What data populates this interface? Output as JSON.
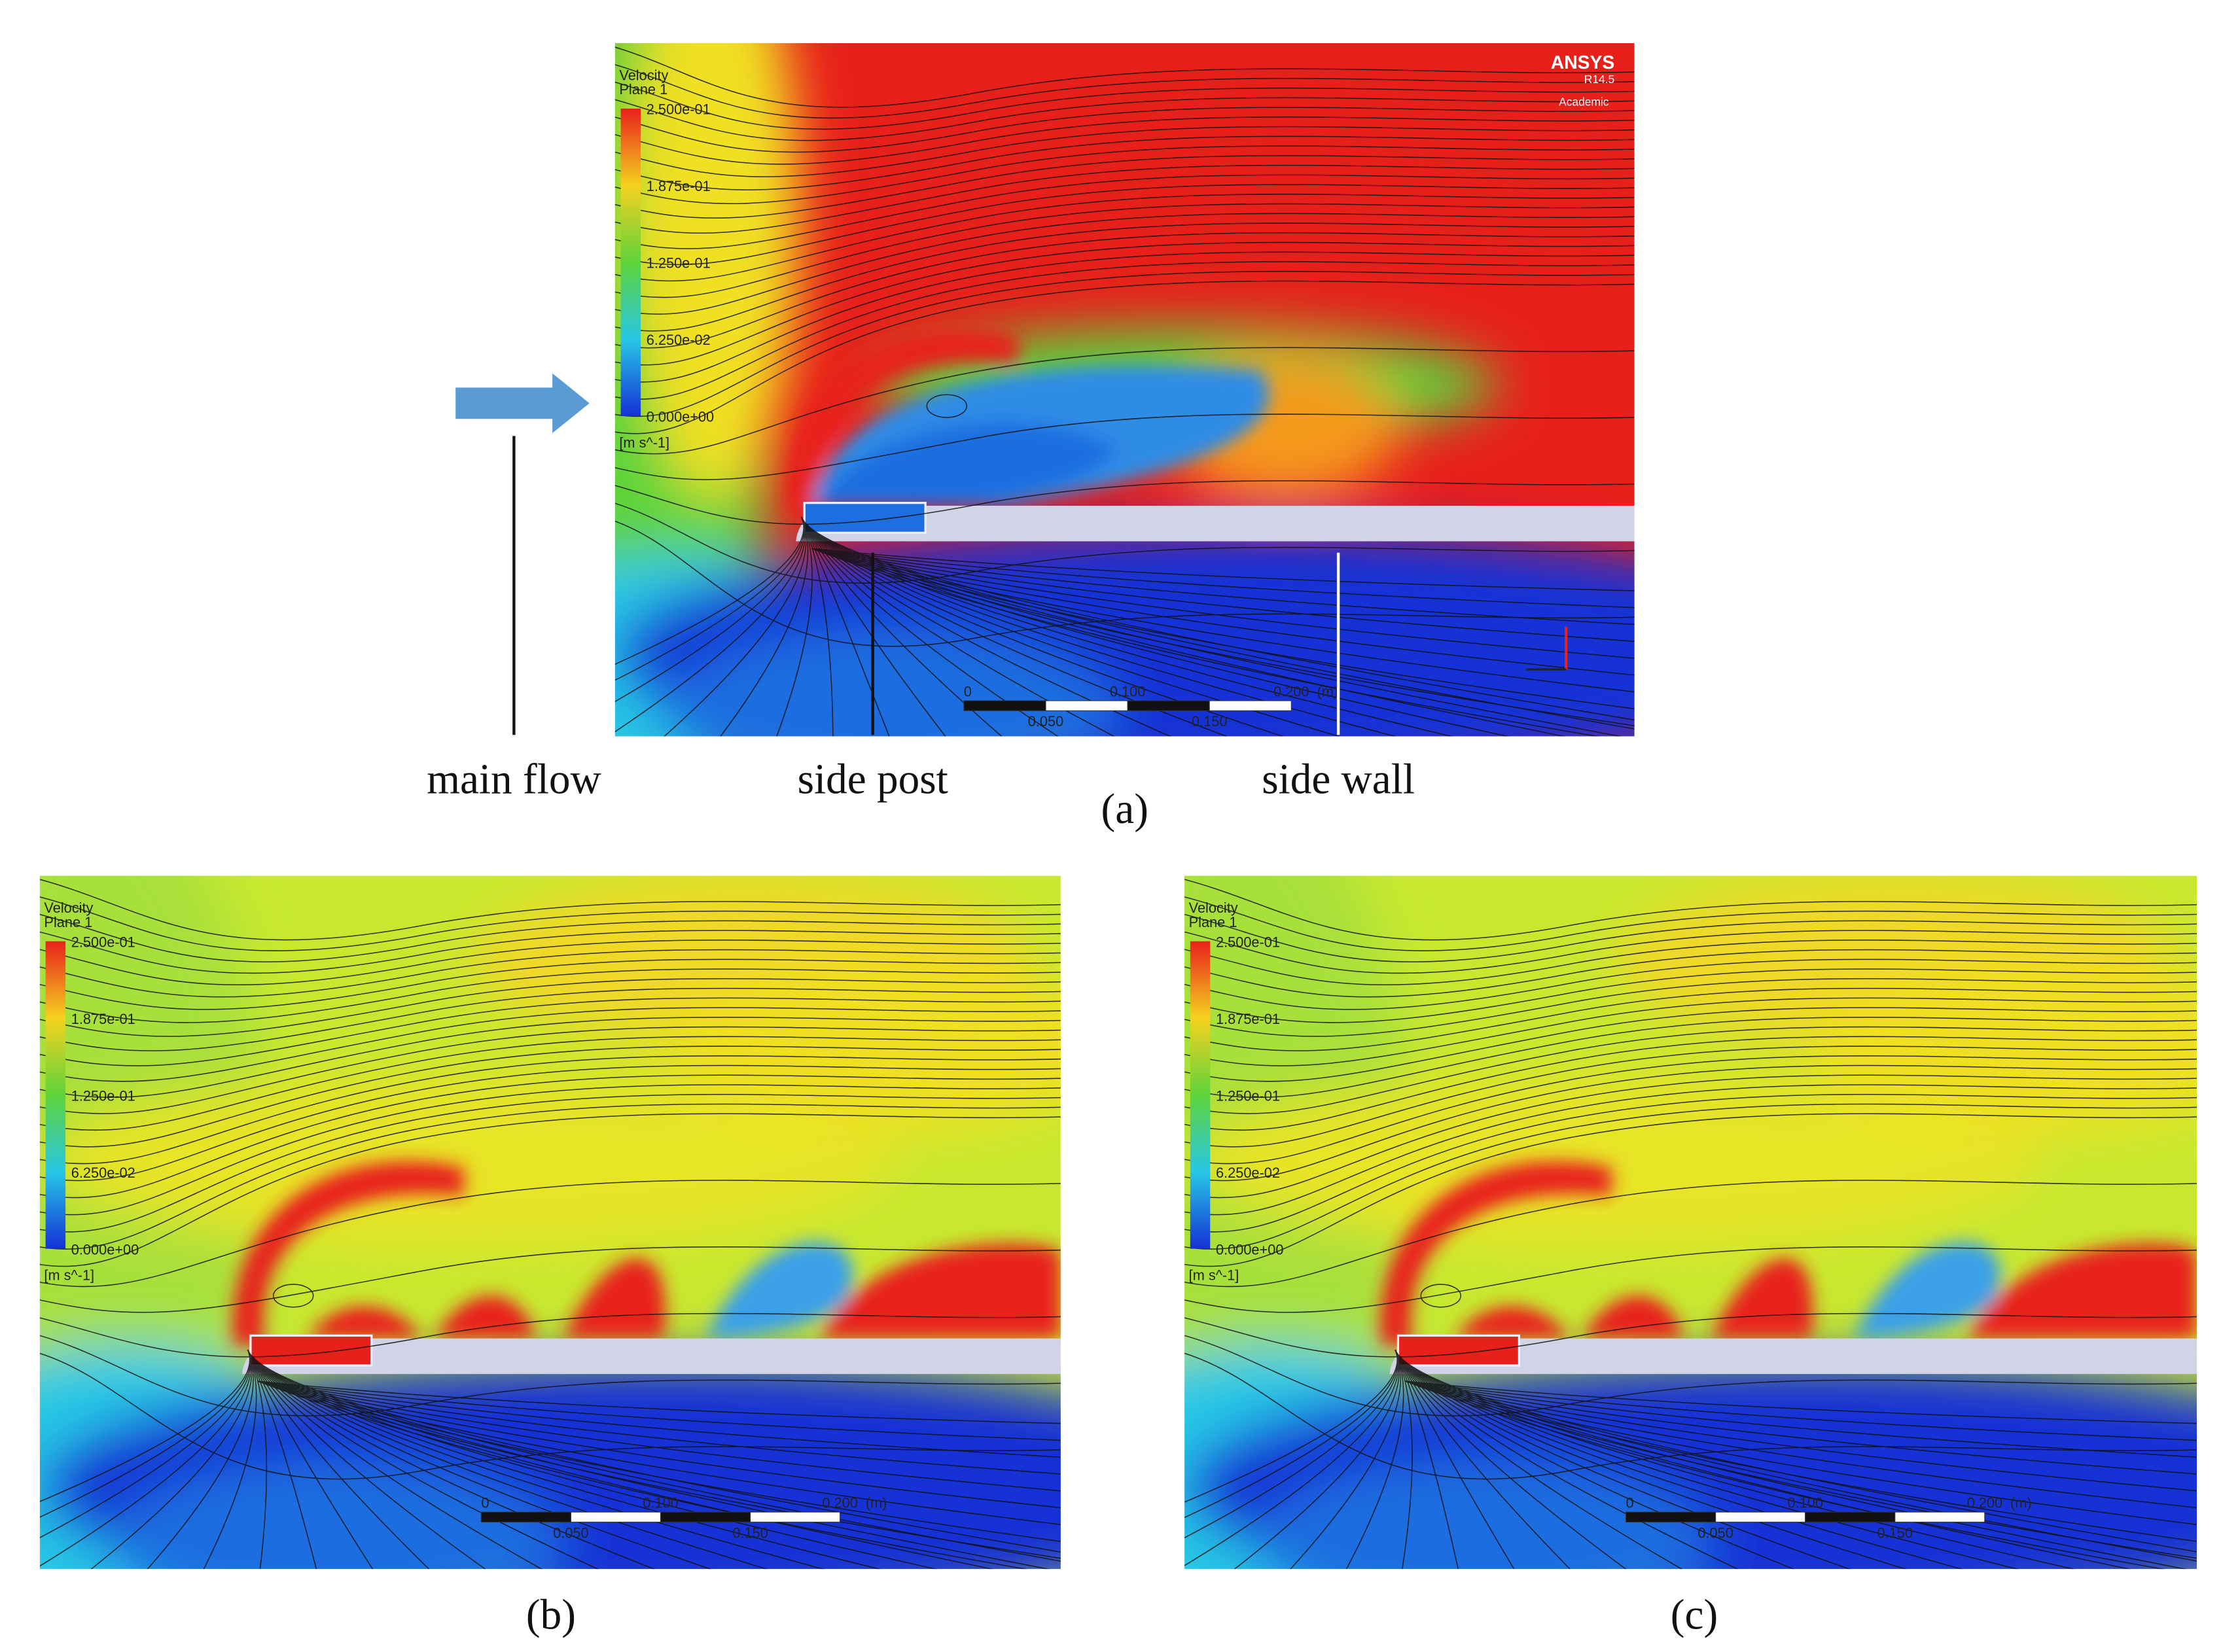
{
  "panels": [
    {
      "label": "(a)",
      "legend": {
        "title": "Velocity",
        "subtitle": "Plane 1",
        "ticks": [
          "2.500e-01",
          "1.875e-01",
          "1.250e-01",
          "6.250e-02",
          "0.000e+00"
        ],
        "unit": "[m s^-1]"
      },
      "logo": {
        "name": "ANSYS",
        "version": "R14.5",
        "edition": "Academic"
      },
      "scale_bar": {
        "top": [
          "0",
          "0.100",
          "0.200",
          "(m)"
        ],
        "bottom": [
          "0.050",
          "0.150"
        ]
      }
    },
    {
      "label": "(b)",
      "legend": {
        "title": "Velocity",
        "subtitle": "Plane 1",
        "ticks": [
          "2.500e-01",
          "1.875e-01",
          "1.250e-01",
          "6.250e-02",
          "0.000e+00"
        ],
        "unit": "[m s^-1]"
      },
      "scale_bar": {
        "top": [
          "0",
          "0.100",
          "0.200",
          "(m)"
        ],
        "bottom": [
          "0.050",
          "0.150"
        ]
      }
    },
    {
      "label": "(c)",
      "legend": {
        "title": "Velocity",
        "subtitle": "Plane 1",
        "ticks": [
          "2.500e-01",
          "1.875e-01",
          "1.250e-01",
          "6.250e-02",
          "0.000e+00"
        ],
        "unit": "[m s^-1]"
      },
      "scale_bar": {
        "top": [
          "0",
          "0.100",
          "0.200",
          "(m)"
        ],
        "bottom": [
          "0.050",
          "0.150"
        ]
      }
    }
  ],
  "annotations": [
    "main flow",
    "side post",
    "side wall"
  ]
}
